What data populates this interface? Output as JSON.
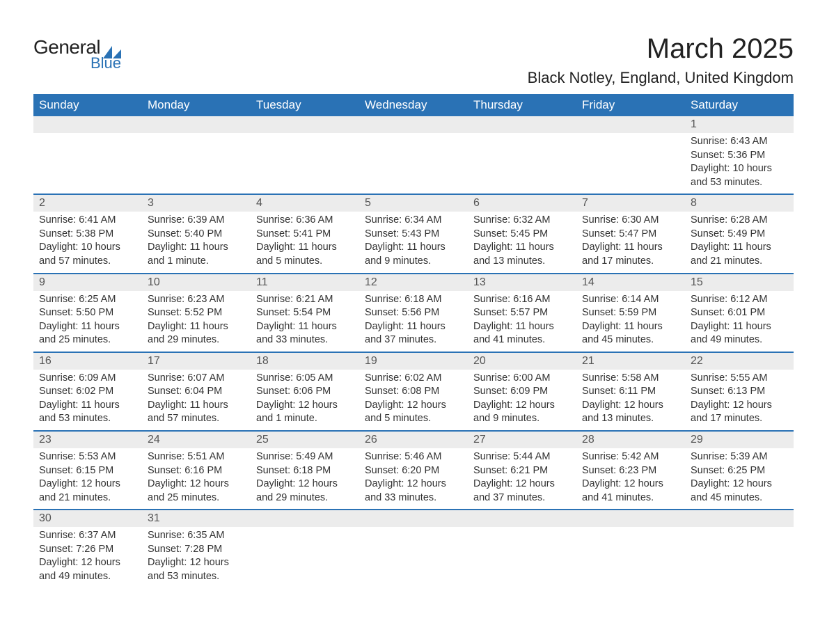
{
  "logo": {
    "general": "General",
    "blue": "Blue"
  },
  "title": "March 2025",
  "location": "Black Notley, England, United Kingdom",
  "colors": {
    "header_bg": "#2a72b5",
    "header_text": "#ffffff",
    "daybar_bg": "#ececec",
    "row_border": "#2a72b5",
    "text": "#333333"
  },
  "day_headers": [
    "Sunday",
    "Monday",
    "Tuesday",
    "Wednesday",
    "Thursday",
    "Friday",
    "Saturday"
  ],
  "labels": {
    "sunrise": "Sunrise:",
    "sunset": "Sunset:",
    "daylight": "Daylight:"
  },
  "weeks": [
    [
      null,
      null,
      null,
      null,
      null,
      null,
      {
        "n": "1",
        "sunrise": "6:43 AM",
        "sunset": "5:36 PM",
        "day_l1": "10 hours",
        "day_l2": "and 53 minutes."
      }
    ],
    [
      {
        "n": "2",
        "sunrise": "6:41 AM",
        "sunset": "5:38 PM",
        "day_l1": "10 hours",
        "day_l2": "and 57 minutes."
      },
      {
        "n": "3",
        "sunrise": "6:39 AM",
        "sunset": "5:40 PM",
        "day_l1": "11 hours",
        "day_l2": "and 1 minute."
      },
      {
        "n": "4",
        "sunrise": "6:36 AM",
        "sunset": "5:41 PM",
        "day_l1": "11 hours",
        "day_l2": "and 5 minutes."
      },
      {
        "n": "5",
        "sunrise": "6:34 AM",
        "sunset": "5:43 PM",
        "day_l1": "11 hours",
        "day_l2": "and 9 minutes."
      },
      {
        "n": "6",
        "sunrise": "6:32 AM",
        "sunset": "5:45 PM",
        "day_l1": "11 hours",
        "day_l2": "and 13 minutes."
      },
      {
        "n": "7",
        "sunrise": "6:30 AM",
        "sunset": "5:47 PM",
        "day_l1": "11 hours",
        "day_l2": "and 17 minutes."
      },
      {
        "n": "8",
        "sunrise": "6:28 AM",
        "sunset": "5:49 PM",
        "day_l1": "11 hours",
        "day_l2": "and 21 minutes."
      }
    ],
    [
      {
        "n": "9",
        "sunrise": "6:25 AM",
        "sunset": "5:50 PM",
        "day_l1": "11 hours",
        "day_l2": "and 25 minutes."
      },
      {
        "n": "10",
        "sunrise": "6:23 AM",
        "sunset": "5:52 PM",
        "day_l1": "11 hours",
        "day_l2": "and 29 minutes."
      },
      {
        "n": "11",
        "sunrise": "6:21 AM",
        "sunset": "5:54 PM",
        "day_l1": "11 hours",
        "day_l2": "and 33 minutes."
      },
      {
        "n": "12",
        "sunrise": "6:18 AM",
        "sunset": "5:56 PM",
        "day_l1": "11 hours",
        "day_l2": "and 37 minutes."
      },
      {
        "n": "13",
        "sunrise": "6:16 AM",
        "sunset": "5:57 PM",
        "day_l1": "11 hours",
        "day_l2": "and 41 minutes."
      },
      {
        "n": "14",
        "sunrise": "6:14 AM",
        "sunset": "5:59 PM",
        "day_l1": "11 hours",
        "day_l2": "and 45 minutes."
      },
      {
        "n": "15",
        "sunrise": "6:12 AM",
        "sunset": "6:01 PM",
        "day_l1": "11 hours",
        "day_l2": "and 49 minutes."
      }
    ],
    [
      {
        "n": "16",
        "sunrise": "6:09 AM",
        "sunset": "6:02 PM",
        "day_l1": "11 hours",
        "day_l2": "and 53 minutes."
      },
      {
        "n": "17",
        "sunrise": "6:07 AM",
        "sunset": "6:04 PM",
        "day_l1": "11 hours",
        "day_l2": "and 57 minutes."
      },
      {
        "n": "18",
        "sunrise": "6:05 AM",
        "sunset": "6:06 PM",
        "day_l1": "12 hours",
        "day_l2": "and 1 minute."
      },
      {
        "n": "19",
        "sunrise": "6:02 AM",
        "sunset": "6:08 PM",
        "day_l1": "12 hours",
        "day_l2": "and 5 minutes."
      },
      {
        "n": "20",
        "sunrise": "6:00 AM",
        "sunset": "6:09 PM",
        "day_l1": "12 hours",
        "day_l2": "and 9 minutes."
      },
      {
        "n": "21",
        "sunrise": "5:58 AM",
        "sunset": "6:11 PM",
        "day_l1": "12 hours",
        "day_l2": "and 13 minutes."
      },
      {
        "n": "22",
        "sunrise": "5:55 AM",
        "sunset": "6:13 PM",
        "day_l1": "12 hours",
        "day_l2": "and 17 minutes."
      }
    ],
    [
      {
        "n": "23",
        "sunrise": "5:53 AM",
        "sunset": "6:15 PM",
        "day_l1": "12 hours",
        "day_l2": "and 21 minutes."
      },
      {
        "n": "24",
        "sunrise": "5:51 AM",
        "sunset": "6:16 PM",
        "day_l1": "12 hours",
        "day_l2": "and 25 minutes."
      },
      {
        "n": "25",
        "sunrise": "5:49 AM",
        "sunset": "6:18 PM",
        "day_l1": "12 hours",
        "day_l2": "and 29 minutes."
      },
      {
        "n": "26",
        "sunrise": "5:46 AM",
        "sunset": "6:20 PM",
        "day_l1": "12 hours",
        "day_l2": "and 33 minutes."
      },
      {
        "n": "27",
        "sunrise": "5:44 AM",
        "sunset": "6:21 PM",
        "day_l1": "12 hours",
        "day_l2": "and 37 minutes."
      },
      {
        "n": "28",
        "sunrise": "5:42 AM",
        "sunset": "6:23 PM",
        "day_l1": "12 hours",
        "day_l2": "and 41 minutes."
      },
      {
        "n": "29",
        "sunrise": "5:39 AM",
        "sunset": "6:25 PM",
        "day_l1": "12 hours",
        "day_l2": "and 45 minutes."
      }
    ],
    [
      {
        "n": "30",
        "sunrise": "6:37 AM",
        "sunset": "7:26 PM",
        "day_l1": "12 hours",
        "day_l2": "and 49 minutes."
      },
      {
        "n": "31",
        "sunrise": "6:35 AM",
        "sunset": "7:28 PM",
        "day_l1": "12 hours",
        "day_l2": "and 53 minutes."
      },
      null,
      null,
      null,
      null,
      null
    ]
  ]
}
